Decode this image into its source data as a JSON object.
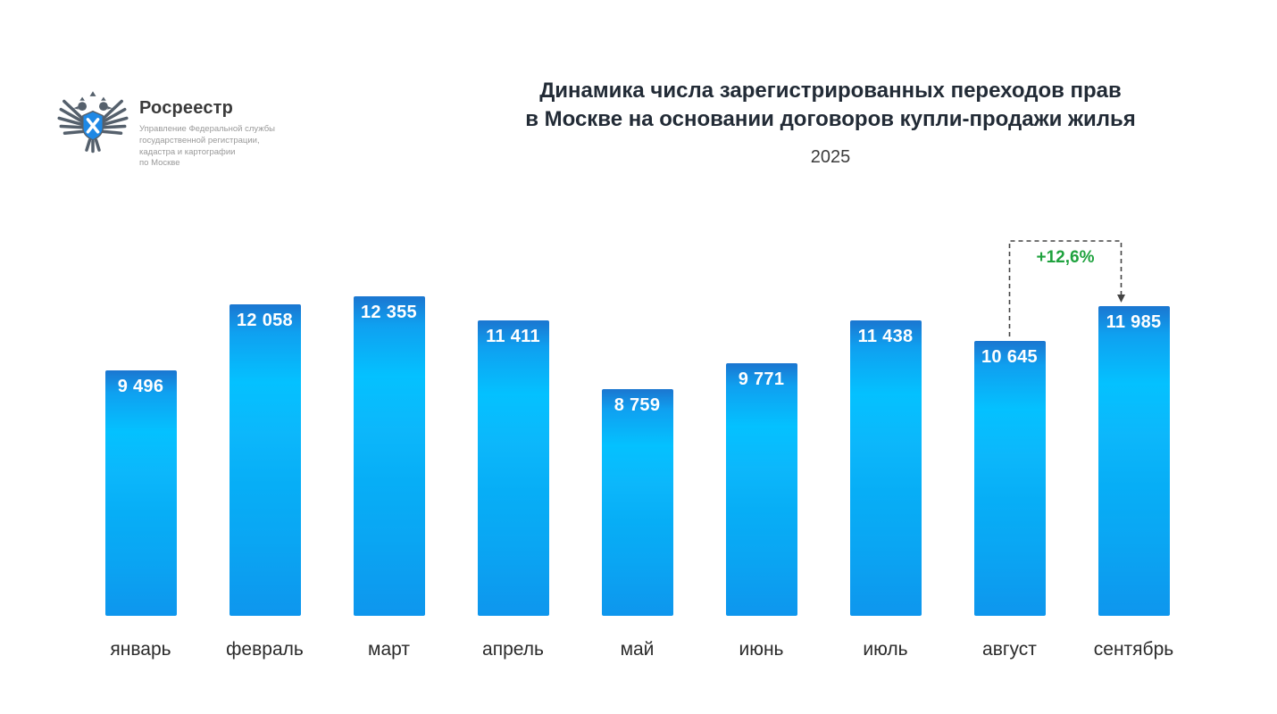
{
  "logo": {
    "name": "Росреестр",
    "org_lines": "Управление Федеральной службы государственной регистрации, кадастра и картографии по Москве",
    "org_line1": "Управление Федеральной службы",
    "org_line2": "государственной регистрации,",
    "org_line3": "кадастра и картографии",
    "org_line4": "по Москве"
  },
  "header": {
    "title_line1": "Динамика числа зарегистрированных переходов прав",
    "title_line2": "в Москве на основании договоров купли-продажи жилья",
    "year": "2025"
  },
  "annotation": {
    "label": "+12,6%",
    "color": "#1fa23e",
    "from_category": "август",
    "to_category": "сентябрь"
  },
  "chart_data": {
    "type": "bar",
    "title": "Динамика числа зарегистрированных переходов прав в Москве на основании договоров купли-продажи жилья",
    "subtitle": "2025",
    "categories": [
      "январь",
      "февраль",
      "март",
      "апрель",
      "май",
      "июнь",
      "июль",
      "август",
      "сентябрь"
    ],
    "values": [
      9496,
      12058,
      12355,
      11411,
      8759,
      9771,
      11438,
      10645,
      11985
    ],
    "value_labels": [
      "9 496",
      "12 058",
      "12 355",
      "11 411",
      "8 759",
      "9 771",
      "11 438",
      "10 645",
      "11 985"
    ],
    "xlabel": "",
    "ylabel": "",
    "ylim": [
      0,
      12355
    ],
    "grid": false,
    "legend": "none",
    "bar_color_top": "#1b76d0",
    "bar_color_mid": "#04c1ff",
    "bar_color_bottom": "#0e96ed",
    "annotation_value": "+12,6%"
  }
}
